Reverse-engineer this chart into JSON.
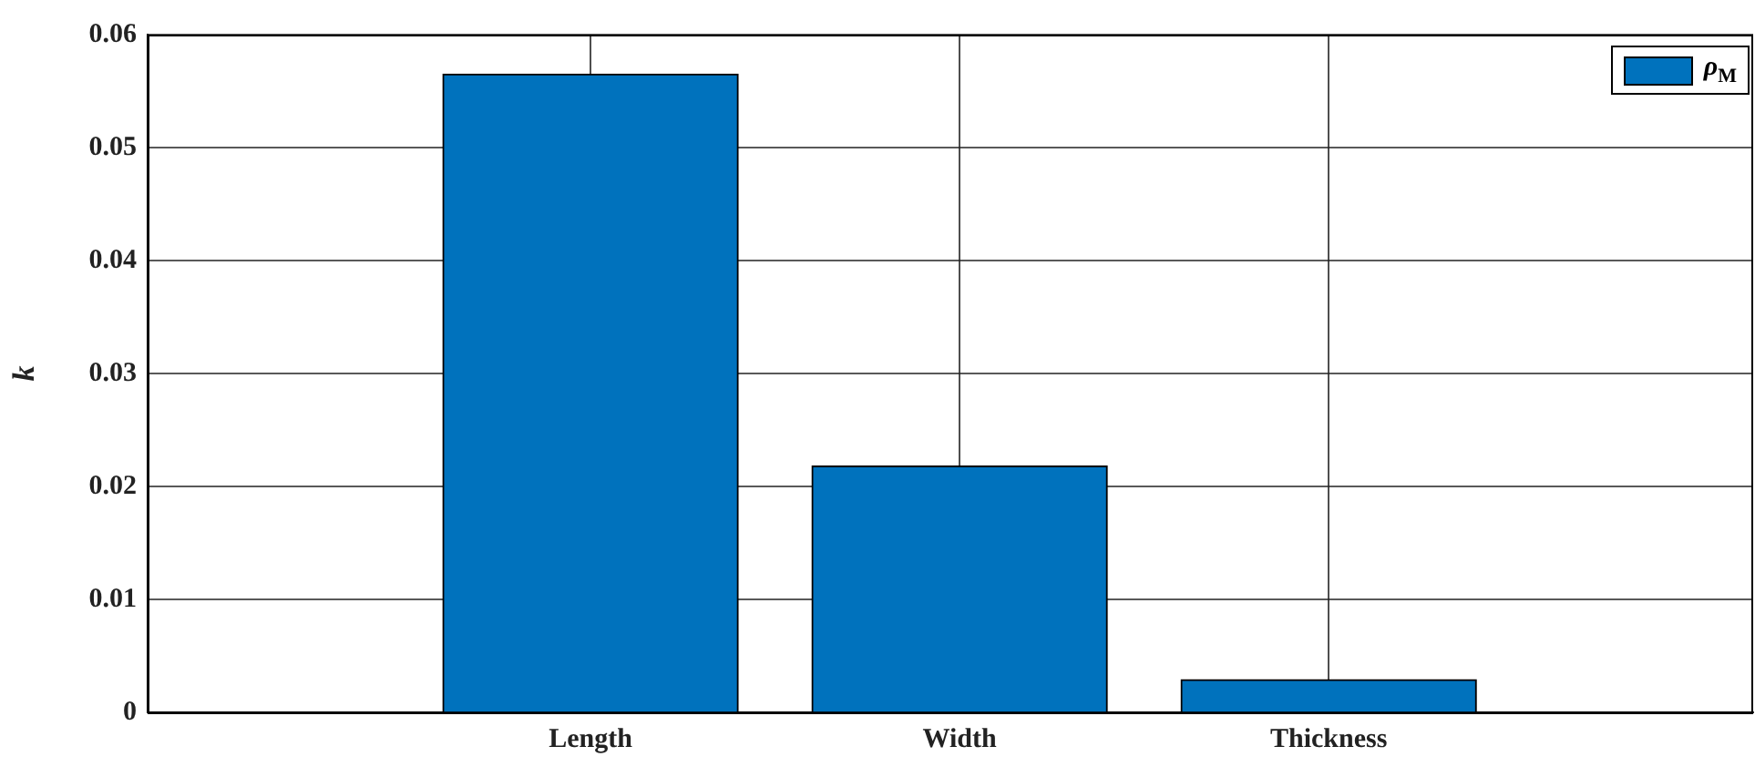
{
  "chart_data": {
    "type": "bar",
    "ylabel": "k",
    "categories": [
      "Length",
      "Width",
      "Thickness"
    ],
    "series": [
      {
        "name": "ρ$_{M}$",
        "color": "#0072bd",
        "values": [
          0.0565,
          0.0218,
          0.0029
        ]
      }
    ],
    "ylim": [
      0,
      0.06
    ],
    "yticks": [
      0,
      0.01,
      0.02,
      0.03,
      0.04,
      0.05,
      0.06
    ],
    "grid": true,
    "legend": "top right"
  }
}
